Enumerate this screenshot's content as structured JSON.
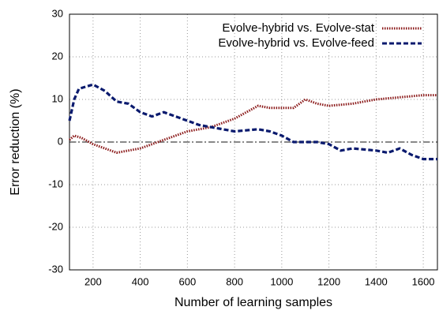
{
  "chart_data": {
    "type": "line",
    "xlabel": "Number of learning samples",
    "ylabel": "Error reduction (%)",
    "xlim": [
      100,
      1660
    ],
    "ylim": [
      -30,
      30
    ],
    "xticks": [
      200,
      400,
      600,
      800,
      1000,
      1200,
      1400,
      1600
    ],
    "yticks": [
      -30,
      -20,
      -10,
      0,
      10,
      20,
      30
    ],
    "grid": true,
    "legend": "upper right",
    "reference_line": 0,
    "series": [
      {
        "name": "Evolve-hybrid vs. Evolve-stat",
        "color": "#8b1a1a",
        "style": "dotted",
        "x": [
          100,
          120,
          150,
          200,
          250,
          300,
          400,
          500,
          600,
          700,
          800,
          900,
          950,
          1000,
          1050,
          1100,
          1150,
          1200,
          1300,
          1400,
          1500,
          1600,
          1660
        ],
        "values": [
          0.5,
          1.5,
          1,
          -0.5,
          -1.5,
          -2.5,
          -1.5,
          0.5,
          2.5,
          3.5,
          5.5,
          8.5,
          8,
          8,
          8,
          10,
          9,
          8.5,
          9,
          10,
          10.5,
          11,
          11
        ]
      },
      {
        "name": "Evolve-hybrid vs. Evolve-feed",
        "color": "#0a1a6e",
        "style": "dashed",
        "x": [
          100,
          120,
          140,
          200,
          250,
          300,
          350,
          400,
          450,
          500,
          550,
          600,
          650,
          700,
          750,
          800,
          900,
          950,
          1000,
          1050,
          1100,
          1150,
          1200,
          1250,
          1300,
          1400,
          1450,
          1500,
          1550,
          1600,
          1660
        ],
        "values": [
          5,
          10,
          12.5,
          13.5,
          12,
          9.5,
          9,
          7,
          6,
          7,
          6,
          5,
          4,
          3.5,
          3,
          2.5,
          3,
          2.5,
          1.5,
          0,
          0,
          0,
          -0.5,
          -2,
          -1.5,
          -2,
          -2.5,
          -1.5,
          -3,
          -4,
          -4
        ]
      }
    ]
  }
}
